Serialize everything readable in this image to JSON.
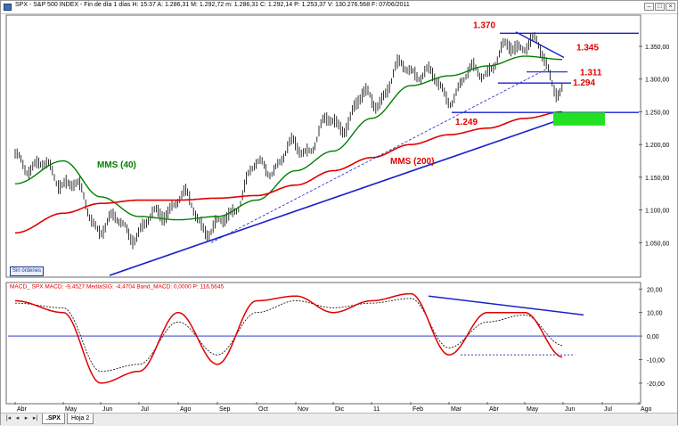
{
  "window": {
    "title": "SPX - S&P 500 INDEX - Fin de día 1 días  H: 15:37  A: 1.286,31  M: 1.292,72  m: 1.286,31  C: 1.292,14  P: 1.253,37  V: 130.276.568  F: 07/06/2011",
    "buttons": {
      "minimize": "–",
      "maximize": "□",
      "close": "×"
    }
  },
  "colors": {
    "price": "#000000",
    "mms40": "#008000",
    "mms200": "#e00000",
    "trend_line": "#1a22c8",
    "macd": "#e00000",
    "signal": "#000000",
    "zone": "#22e022",
    "annotation": "#e00000"
  },
  "sin_ordenes": "Sin órdenes",
  "tabs": {
    "items": [
      {
        "label": ".SPX"
      },
      {
        "label": "Hoja 2"
      }
    ],
    "nav": [
      "|◂",
      "◂",
      "▸",
      "▸|"
    ]
  },
  "chart_data": [
    {
      "type": "line",
      "x": [
        "2010-04",
        "2010-05",
        "2010-06",
        "2010-07",
        "2010-08",
        "2010-09",
        "2010-10",
        "2010-11",
        "2010-12",
        "2011-01",
        "2011-02",
        "2011-03",
        "2011-04",
        "2011-05",
        "2011-06"
      ],
      "series": [
        {
          "name": "",
          "values": [
            1180,
            1150,
            1080,
            1070,
            1115,
            1070,
            1160,
            1190,
            1230,
            1270,
            1320,
            1280,
            1320,
            1360,
            1290
          ]
        },
        {
          "name": "MMS (40)",
          "values": [
            1140,
            1175,
            1120,
            1090,
            1085,
            1090,
            1115,
            1160,
            1190,
            1240,
            1290,
            1305,
            1320,
            1335,
            1330
          ]
        },
        {
          "name": "MMS (200)",
          "values": [
            1065,
            1095,
            1110,
            1115,
            1115,
            1118,
            1122,
            1138,
            1160,
            1180,
            1200,
            1215,
            1225,
            1240,
            1250
          ]
        }
      ],
      "annotations": [
        {
          "label": "1.370",
          "value": 1370
        },
        {
          "label": "1.345",
          "value": 1345
        },
        {
          "label": "1.311",
          "value": 1311
        },
        {
          "label": "1.294",
          "value": 1294
        },
        {
          "label": "1.249",
          "value": 1249
        },
        {
          "label": "MMS (40)"
        },
        {
          "label": "MMS (200)"
        }
      ],
      "y_ticks": [
        "1.350,00",
        "1.300,00",
        "1.250,00",
        "1.200,00",
        "1.150,00",
        "1.100,00",
        "1.050,00"
      ],
      "x_ticks": [
        "Abr",
        "May",
        "Jun",
        "Jul",
        "Ago",
        "Sep",
        "Oct",
        "Nov",
        "Dic",
        "11",
        "Feb",
        "Mar",
        "Abr",
        "May",
        "Jun",
        "Jul",
        "Ago"
      ],
      "ylim": [
        1000,
        1395
      ],
      "grid": false
    },
    {
      "type": "line",
      "title": "MACD_ SPX  MACD: -9,4527  MediaSIG: -4,4704  Band_MACD: 0,0000  P: 116,5645",
      "x": [
        "2010-04",
        "2010-05",
        "2010-06",
        "2010-07",
        "2010-08",
        "2010-09",
        "2010-10",
        "2010-11",
        "2010-12",
        "2011-01",
        "2011-02",
        "2011-03",
        "2011-04",
        "2011-05",
        "2011-06"
      ],
      "series": [
        {
          "name": "MACD",
          "values": [
            15,
            10,
            -20,
            -15,
            10,
            -12,
            15,
            17,
            10,
            15,
            18,
            -8,
            10,
            10,
            -9
          ]
        },
        {
          "name": "MediaSIG",
          "values": [
            14,
            12,
            -15,
            -12,
            6,
            -8,
            10,
            15,
            12,
            14,
            16,
            -5,
            6,
            9,
            -4
          ]
        }
      ],
      "y_ticks": [
        "20,00",
        "10,00",
        "0,00",
        "-10,00",
        "-20,00"
      ],
      "ylim": [
        -28,
        22
      ],
      "grid": false
    }
  ]
}
